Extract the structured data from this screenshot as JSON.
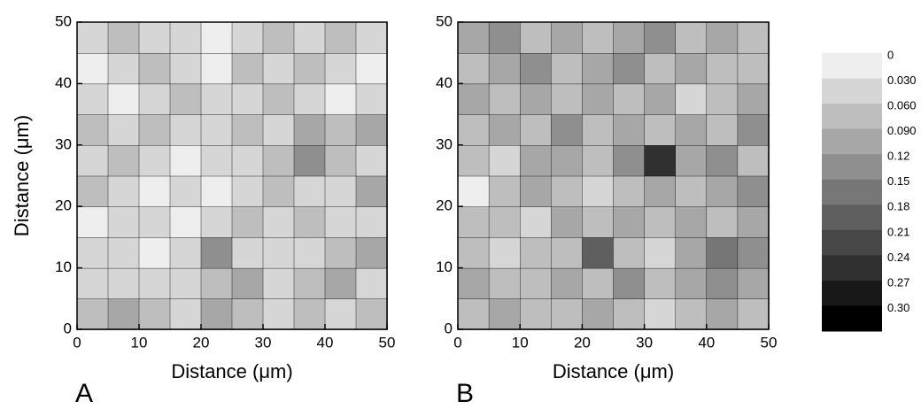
{
  "chart_data": [
    {
      "type": "contour",
      "panel_label": "A",
      "xlabel": "Distance (μm)",
      "ylabel": "Distance (μm)",
      "xlim": [
        0,
        50
      ],
      "ylim": [
        0,
        50
      ],
      "xticks": [
        0,
        10,
        20,
        30,
        40,
        50
      ],
      "yticks": [
        0,
        10,
        20,
        30,
        40,
        50
      ],
      "x": [
        2.5,
        7.5,
        12.5,
        17.5,
        22.5,
        27.5,
        32.5,
        37.5,
        42.5,
        47.5
      ],
      "y": [
        2.5,
        7.5,
        12.5,
        17.5,
        22.5,
        27.5,
        32.5,
        37.5,
        42.5,
        47.5
      ],
      "z": [
        [
          0.06,
          0.09,
          0.06,
          0.03,
          0.09,
          0.06,
          0.03,
          0.06,
          0.03,
          0.06
        ],
        [
          0.03,
          0.03,
          0.03,
          0.03,
          0.06,
          0.09,
          0.03,
          0.06,
          0.09,
          0.03
        ],
        [
          0.03,
          0.03,
          0,
          0.03,
          0.12,
          0.03,
          0.03,
          0.03,
          0.06,
          0.09
        ],
        [
          0,
          0.03,
          0.03,
          0,
          0.03,
          0.06,
          0.03,
          0.06,
          0.03,
          0.03
        ],
        [
          0.06,
          0.03,
          0,
          0.03,
          0,
          0.03,
          0.06,
          0.03,
          0.03,
          0.09
        ],
        [
          0.03,
          0.06,
          0.03,
          0,
          0.03,
          0.03,
          0.06,
          0.12,
          0.06,
          0.03
        ],
        [
          0.06,
          0.03,
          0.06,
          0.03,
          0.03,
          0.06,
          0.03,
          0.09,
          0.06,
          0.09
        ],
        [
          0.03,
          0,
          0.03,
          0.06,
          0.03,
          0.03,
          0.06,
          0.03,
          0,
          0.03
        ],
        [
          0,
          0.03,
          0.06,
          0.03,
          0,
          0.06,
          0.03,
          0.06,
          0.03,
          0
        ],
        [
          0.03,
          0.06,
          0.03,
          0.03,
          0,
          0.03,
          0.06,
          0.03,
          0.06,
          0.03
        ]
      ]
    },
    {
      "type": "contour",
      "panel_label": "B",
      "xlabel": "Distance (μm)",
      "xlim": [
        0,
        50
      ],
      "ylim": [
        0,
        50
      ],
      "xticks": [
        0,
        10,
        20,
        30,
        40,
        50
      ],
      "yticks": [
        0,
        10,
        20,
        30,
        40,
        50
      ],
      "x": [
        2.5,
        7.5,
        12.5,
        17.5,
        22.5,
        27.5,
        32.5,
        37.5,
        42.5,
        47.5
      ],
      "y": [
        2.5,
        7.5,
        12.5,
        17.5,
        22.5,
        27.5,
        32.5,
        37.5,
        42.5,
        47.5
      ],
      "z": [
        [
          0.06,
          0.09,
          0.06,
          0.06,
          0.09,
          0.06,
          0.03,
          0.06,
          0.09,
          0.06
        ],
        [
          0.09,
          0.06,
          0.06,
          0.09,
          0.06,
          0.12,
          0.06,
          0.09,
          0.12,
          0.09
        ],
        [
          0.06,
          0.03,
          0.06,
          0.06,
          0.18,
          0.06,
          0.03,
          0.09,
          0.15,
          0.12
        ],
        [
          0.06,
          0.06,
          0.03,
          0.09,
          0.06,
          0.09,
          0.06,
          0.09,
          0.06,
          0.09
        ],
        [
          0,
          0.06,
          0.09,
          0.06,
          0.03,
          0.06,
          0.09,
          0.06,
          0.09,
          0.12
        ],
        [
          0.06,
          0.03,
          0.09,
          0.09,
          0.06,
          0.12,
          0.24,
          0.09,
          0.12,
          0.06
        ],
        [
          0.06,
          0.09,
          0.06,
          0.12,
          0.06,
          0.09,
          0.06,
          0.09,
          0.06,
          0.12
        ],
        [
          0.09,
          0.06,
          0.09,
          0.06,
          0.09,
          0.06,
          0.09,
          0.03,
          0.06,
          0.09
        ],
        [
          0.06,
          0.09,
          0.12,
          0.06,
          0.09,
          0.12,
          0.06,
          0.09,
          0.06,
          0.06
        ],
        [
          0.09,
          0.12,
          0.06,
          0.09,
          0.06,
          0.09,
          0.12,
          0.06,
          0.09,
          0.06
        ]
      ]
    }
  ],
  "colorbar": {
    "ticks": [
      0,
      {
        "value": 0.03,
        "label": "0.030"
      },
      {
        "value": 0.06,
        "label": "0.060"
      },
      {
        "value": 0.09,
        "label": "0.090"
      },
      0.12,
      0.15,
      0.18,
      0.21,
      0.24,
      0.27,
      {
        "value": 0.3,
        "label": "0.30"
      }
    ]
  }
}
